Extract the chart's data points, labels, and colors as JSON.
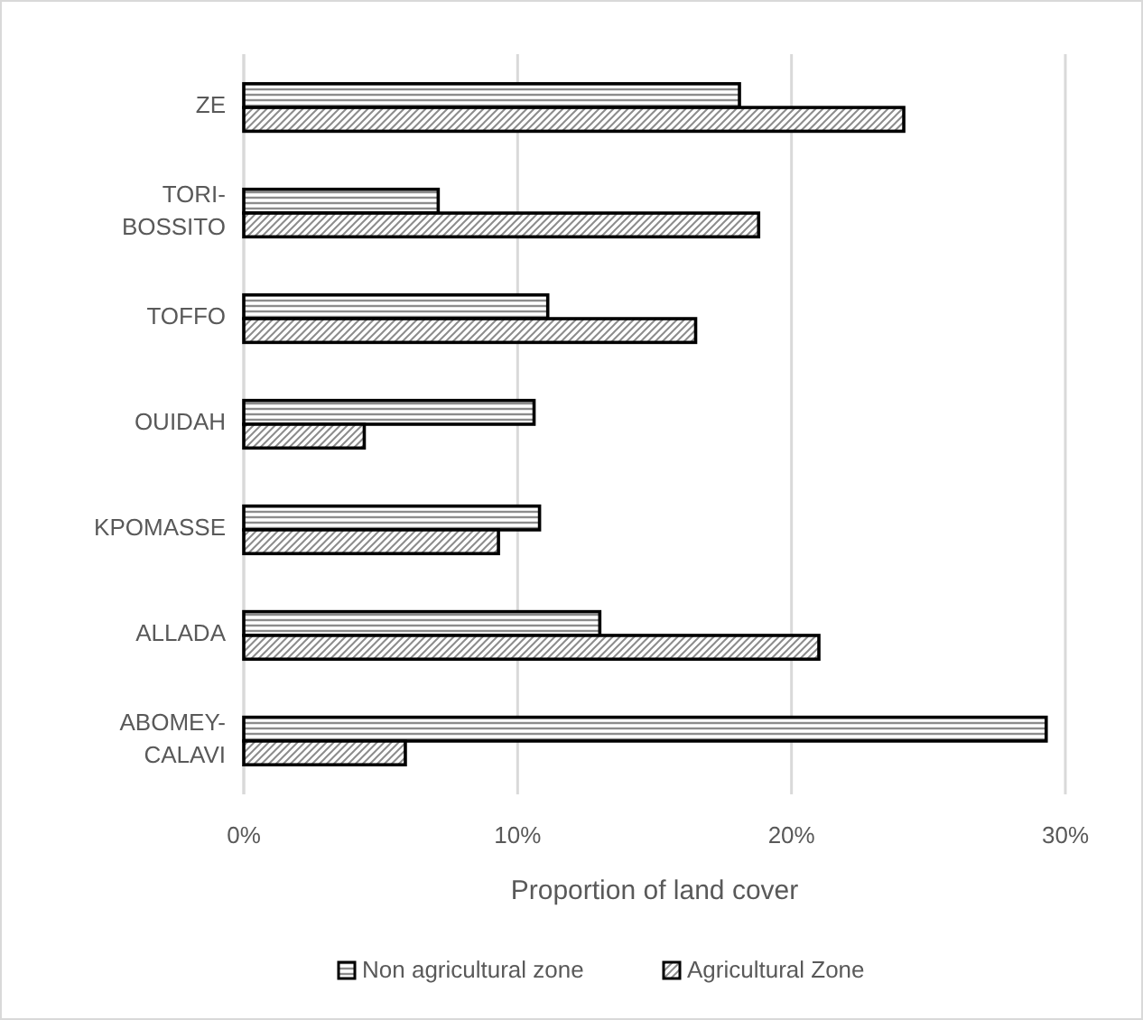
{
  "chart_data": {
    "type": "bar",
    "orientation": "horizontal",
    "xlabel": "Proportion of land cover",
    "categories": [
      "ZE",
      "TORI-BOSSITO",
      "TOFFO",
      "OUIDAH",
      "KPOMASSE",
      "ALLADA",
      "ABOMEY-CALAVI"
    ],
    "series": [
      {
        "name": "Non agricultural zone",
        "color": "#000000",
        "values": [
          18.1,
          7.1,
          11.1,
          10.6,
          10.8,
          13.0,
          29.3
        ]
      },
      {
        "name": "Agricultural Zone",
        "color": "#000000",
        "values": [
          24.1,
          18.8,
          16.5,
          4.4,
          9.3,
          21.0,
          5.9
        ]
      }
    ],
    "xlim": [
      0,
      30
    ],
    "xticks": [
      {
        "value": 0,
        "label": "0%"
      },
      {
        "value": 10,
        "label": "10%"
      },
      {
        "value": 20,
        "label": "20%"
      },
      {
        "value": 30,
        "label": "30%"
      }
    ],
    "grid": "x",
    "legend": "bottom"
  }
}
